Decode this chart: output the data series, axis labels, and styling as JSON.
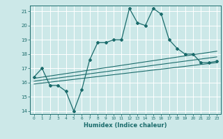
{
  "title": "",
  "xlabel": "Humidex (Indice chaleur)",
  "bg_color": "#cce8e8",
  "grid_color": "#ffffff",
  "line_color": "#1a6b6b",
  "xlim": [
    -0.5,
    23.5
  ],
  "ylim": [
    13.8,
    21.4
  ],
  "x_ticks": [
    0,
    1,
    2,
    3,
    4,
    5,
    6,
    7,
    8,
    9,
    10,
    11,
    12,
    13,
    14,
    15,
    16,
    17,
    18,
    19,
    20,
    21,
    22,
    23
  ],
  "y_ticks": [
    14,
    15,
    16,
    17,
    18,
    19,
    20,
    21
  ],
  "main_x": [
    0,
    1,
    2,
    3,
    4,
    5,
    6,
    7,
    8,
    9,
    10,
    11,
    12,
    13,
    14,
    15,
    16,
    17,
    18,
    19,
    20,
    21,
    22,
    23
  ],
  "main_y": [
    16.4,
    17.0,
    15.8,
    15.8,
    15.4,
    14.0,
    15.5,
    17.6,
    18.8,
    18.8,
    19.0,
    19.0,
    21.2,
    20.2,
    20.0,
    21.2,
    20.8,
    19.0,
    18.4,
    18.0,
    18.0,
    17.4,
    17.4,
    17.5
  ],
  "trend1_x": [
    0,
    23
  ],
  "trend1_y": [
    16.3,
    18.2
  ],
  "trend2_x": [
    0,
    23
  ],
  "trend2_y": [
    16.1,
    17.8
  ],
  "trend3_x": [
    0,
    23
  ],
  "trend3_y": [
    15.9,
    17.4
  ]
}
